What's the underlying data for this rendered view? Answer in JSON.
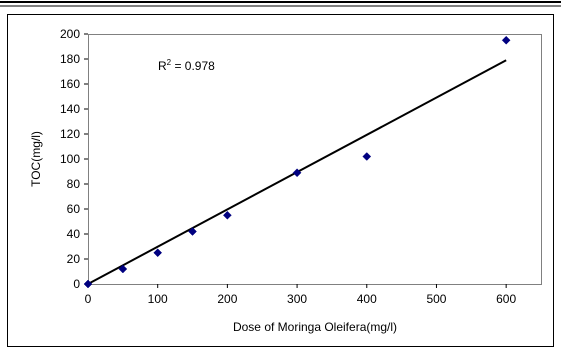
{
  "chart_data": {
    "type": "scatter",
    "title": "",
    "xlabel": "Dose of Moringa Oleifera(mg/l)",
    "ylabel": "TOC(mg/l)",
    "xlim": [
      0,
      650
    ],
    "ylim": [
      0,
      200
    ],
    "xticks": [
      0,
      100,
      200,
      300,
      400,
      500,
      600
    ],
    "yticks": [
      0,
      20,
      40,
      60,
      80,
      100,
      120,
      140,
      160,
      180,
      200
    ],
    "grid": false,
    "legend": "none",
    "series": [
      {
        "x": [
          0,
          50,
          100,
          150,
          200,
          300,
          400,
          600
        ],
        "y": [
          0,
          12,
          25,
          42,
          55,
          89,
          102,
          195
        ],
        "marker": "diamond",
        "color": "#000080"
      }
    ],
    "trendline": {
      "type": "linear",
      "x": [
        0,
        600
      ],
      "y": [
        0,
        179
      ],
      "color": "#000000"
    },
    "annotation": {
      "r2_base": "R",
      "r2_sup": "2",
      "r2_value": " = 0.978"
    }
  }
}
